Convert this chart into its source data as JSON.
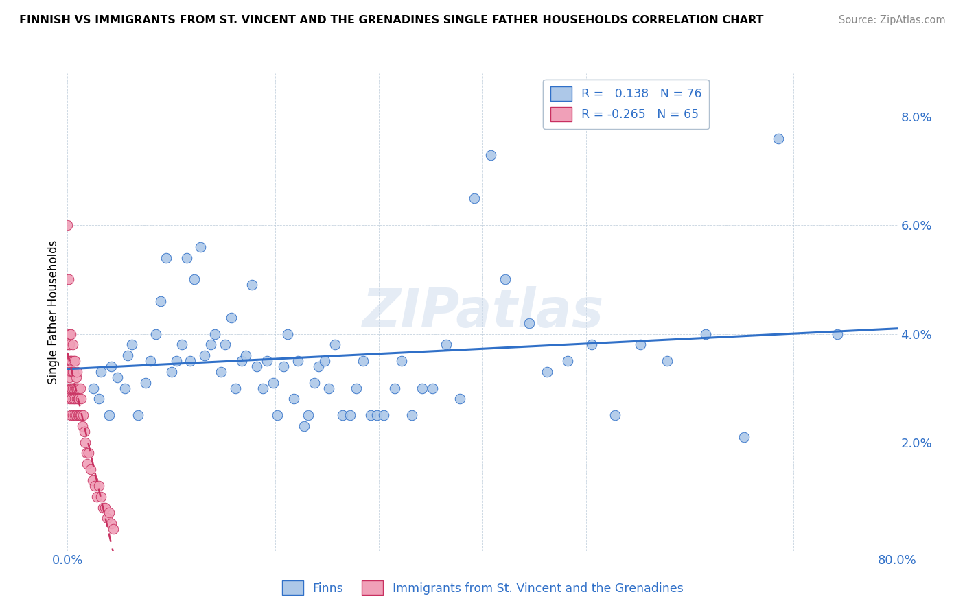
{
  "title": "FINNISH VS IMMIGRANTS FROM ST. VINCENT AND THE GRENADINES SINGLE FATHER HOUSEHOLDS CORRELATION CHART",
  "source": "Source: ZipAtlas.com",
  "ylabel": "Single Father Households",
  "x_min": 0.0,
  "x_max": 0.8,
  "y_min": 0.0,
  "y_max": 0.088,
  "x_ticks": [
    0.0,
    0.1,
    0.2,
    0.3,
    0.4,
    0.5,
    0.6,
    0.7,
    0.8
  ],
  "y_ticks": [
    0.0,
    0.02,
    0.04,
    0.06,
    0.08
  ],
  "legend_label_finns": "Finns",
  "legend_label_immigrants": "Immigrants from St. Vincent and the Grenadines",
  "r_finns": 0.138,
  "n_finns": 76,
  "r_immigrants": -0.265,
  "n_immigrants": 65,
  "color_finns": "#adc8e8",
  "color_immigrants": "#f0a0b8",
  "color_line_finns": "#3070c8",
  "color_line_immigrants": "#c83060",
  "watermark": "ZIPatlas",
  "finns_x": [
    0.025,
    0.03,
    0.032,
    0.04,
    0.042,
    0.048,
    0.055,
    0.058,
    0.062,
    0.068,
    0.075,
    0.08,
    0.085,
    0.09,
    0.095,
    0.1,
    0.105,
    0.11,
    0.115,
    0.118,
    0.122,
    0.128,
    0.132,
    0.138,
    0.142,
    0.148,
    0.152,
    0.158,
    0.162,
    0.168,
    0.172,
    0.178,
    0.182,
    0.188,
    0.192,
    0.198,
    0.202,
    0.208,
    0.212,
    0.218,
    0.222,
    0.228,
    0.232,
    0.238,
    0.242,
    0.248,
    0.252,
    0.258,
    0.265,
    0.272,
    0.278,
    0.285,
    0.292,
    0.298,
    0.305,
    0.315,
    0.322,
    0.332,
    0.342,
    0.352,
    0.365,
    0.378,
    0.392,
    0.408,
    0.422,
    0.445,
    0.462,
    0.482,
    0.505,
    0.528,
    0.552,
    0.578,
    0.615,
    0.652,
    0.685,
    0.742
  ],
  "finns_y": [
    0.03,
    0.028,
    0.033,
    0.025,
    0.034,
    0.032,
    0.03,
    0.036,
    0.038,
    0.025,
    0.031,
    0.035,
    0.04,
    0.046,
    0.054,
    0.033,
    0.035,
    0.038,
    0.054,
    0.035,
    0.05,
    0.056,
    0.036,
    0.038,
    0.04,
    0.033,
    0.038,
    0.043,
    0.03,
    0.035,
    0.036,
    0.049,
    0.034,
    0.03,
    0.035,
    0.031,
    0.025,
    0.034,
    0.04,
    0.028,
    0.035,
    0.023,
    0.025,
    0.031,
    0.034,
    0.035,
    0.03,
    0.038,
    0.025,
    0.025,
    0.03,
    0.035,
    0.025,
    0.025,
    0.025,
    0.03,
    0.035,
    0.025,
    0.03,
    0.03,
    0.038,
    0.028,
    0.065,
    0.073,
    0.05,
    0.042,
    0.033,
    0.035,
    0.038,
    0.025,
    0.038,
    0.035,
    0.04,
    0.021,
    0.076,
    0.04
  ],
  "immigrants_x": [
    0.0,
    0.0,
    0.001,
    0.001,
    0.001,
    0.001,
    0.002,
    0.002,
    0.002,
    0.002,
    0.002,
    0.003,
    0.003,
    0.003,
    0.003,
    0.004,
    0.004,
    0.004,
    0.004,
    0.005,
    0.005,
    0.005,
    0.005,
    0.006,
    0.006,
    0.006,
    0.006,
    0.007,
    0.007,
    0.007,
    0.007,
    0.008,
    0.008,
    0.008,
    0.009,
    0.009,
    0.009,
    0.01,
    0.01,
    0.01,
    0.011,
    0.011,
    0.012,
    0.012,
    0.013,
    0.013,
    0.014,
    0.015,
    0.016,
    0.017,
    0.018,
    0.019,
    0.02,
    0.022,
    0.024,
    0.026,
    0.028,
    0.03,
    0.032,
    0.034,
    0.036,
    0.038,
    0.04,
    0.042,
    0.044
  ],
  "immigrants_y": [
    0.035,
    0.06,
    0.03,
    0.033,
    0.038,
    0.05,
    0.028,
    0.035,
    0.04,
    0.032,
    0.038,
    0.03,
    0.035,
    0.04,
    0.025,
    0.033,
    0.028,
    0.035,
    0.03,
    0.038,
    0.03,
    0.033,
    0.025,
    0.035,
    0.03,
    0.028,
    0.033,
    0.035,
    0.03,
    0.025,
    0.028,
    0.032,
    0.03,
    0.025,
    0.033,
    0.028,
    0.03,
    0.03,
    0.025,
    0.028,
    0.025,
    0.028,
    0.03,
    0.025,
    0.028,
    0.025,
    0.023,
    0.025,
    0.022,
    0.02,
    0.018,
    0.016,
    0.018,
    0.015,
    0.013,
    0.012,
    0.01,
    0.012,
    0.01,
    0.008,
    0.008,
    0.006,
    0.007,
    0.005,
    0.004
  ]
}
